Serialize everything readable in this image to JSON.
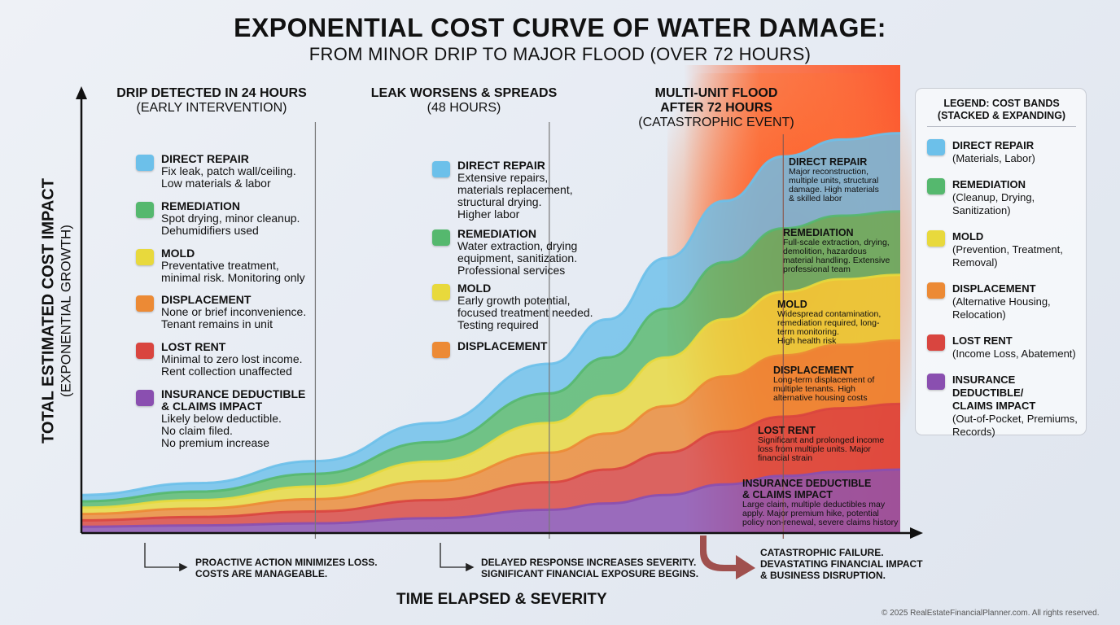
{
  "title": "EXPONENTIAL COST CURVE OF WATER DAMAGE:",
  "subtitle": "FROM MINOR DRIP TO MAJOR FLOOD (OVER 72 HOURS)",
  "copyright": "© 2025 RealEstateFinancialPlanner.com. All rights reserved.",
  "colors": {
    "direct_repair": "#6cc0ea",
    "remediation": "#55b86e",
    "mold": "#e8d93c",
    "displacement": "#ec8a35",
    "lost_rent": "#d9453f",
    "insurance": "#8a4fb0"
  },
  "chart_data": {
    "type": "area",
    "stacked": true,
    "title": "EXPONENTIAL COST CURVE OF WATER DAMAGE:",
    "subtitle": "FROM MINOR DRIP TO MAJOR FLOOD (OVER 72 HOURS)",
    "xlabel": "TIME ELAPSED & SEVERITY",
    "ylabel": "TOTAL ESTIMATED COST IMPACT",
    "ylabel_sub": "(EXPONENTIAL GROWTH)",
    "xlim": [
      0,
      84
    ],
    "ylim": [
      0,
      100
    ],
    "x": [
      0,
      12,
      24,
      36,
      48,
      54,
      60,
      66,
      72,
      78,
      84
    ],
    "series": [
      {
        "name": "INSURANCE DEDUCTIBLE/ CLAIMS IMPACT",
        "color": "#8a4fb0",
        "values": [
          1.5,
          1.8,
          2.3,
          3.5,
          5.5,
          7,
          9,
          11.5,
          13.5,
          14.5,
          15
        ]
      },
      {
        "name": "LOST RENT",
        "color": "#d9453f",
        "values": [
          1.5,
          2,
          2.8,
          4.3,
          6.5,
          8,
          10,
          12.5,
          14,
          15,
          15.5
        ]
      },
      {
        "name": "DISPLACEMENT",
        "color": "#ec8a35",
        "values": [
          1.5,
          2,
          2.9,
          4.5,
          7,
          8.5,
          11,
          13,
          14.5,
          15,
          15
        ]
      },
      {
        "name": "MOLD",
        "color": "#e8d93c",
        "values": [
          1.5,
          2,
          3,
          4.6,
          7,
          9,
          11.5,
          13.5,
          15,
          15.5,
          15.5
        ]
      },
      {
        "name": "REMEDIATION",
        "color": "#55b86e",
        "values": [
          1.5,
          2,
          3,
          4.6,
          7,
          9,
          11.5,
          13.5,
          15,
          15,
          15
        ]
      },
      {
        "name": "DIRECT REPAIR",
        "color": "#6cc0ea",
        "values": [
          1.5,
          2,
          3,
          4.5,
          7,
          9,
          12,
          14.5,
          17,
          18,
          18.5
        ]
      }
    ],
    "stage_markers": [
      24,
      48,
      72
    ]
  },
  "stages": [
    {
      "heading": "DRIP DETECTED IN 24 HOURS",
      "subheading": "(EARLY INTERVENTION)",
      "items": [
        {
          "title": "DIRECT REPAIR",
          "desc": [
            "Fix leak, patch wall/ceiling.",
            "Low materials & labor"
          ]
        },
        {
          "title": "REMEDIATION",
          "desc": [
            "Spot drying, minor cleanup.",
            "Dehumidifiers used"
          ]
        },
        {
          "title": "MOLD",
          "desc": [
            "Preventative treatment,",
            "minimal risk. Monitoring only"
          ]
        },
        {
          "title": "DISPLACEMENT",
          "desc": [
            "None or brief inconvenience.",
            "Tenant remains in unit"
          ]
        },
        {
          "title": "LOST RENT",
          "desc": [
            "Minimal to zero lost income.",
            "Rent collection unaffected"
          ]
        },
        {
          "title": "INSURANCE DEDUCTIBLE",
          "title2": "& CLAIMS IMPACT",
          "desc": [
            "Likely below deductible.",
            "No claim filed.",
            "No premium increase"
          ]
        }
      ],
      "note": [
        "PROACTIVE ACTION MINIMIZES LOSS.",
        "COSTS ARE MANAGEABLE."
      ]
    },
    {
      "heading": "LEAK WORSENS & SPREADS",
      "subheading": "(48 HOURS)",
      "items": [
        {
          "title": "DIRECT REPAIR",
          "desc": [
            "Extensive repairs,",
            "materials replacement,",
            "structural drying.",
            "Higher labor"
          ]
        },
        {
          "title": "REMEDIATION",
          "desc": [
            "Water extraction, drying",
            "equipment, sanitization.",
            "Professional services"
          ]
        },
        {
          "title": "MOLD",
          "desc": [
            "Early growth potential,",
            "focused treatment needed.",
            "Testing required"
          ]
        },
        {
          "title": "DISPLACEMENT",
          "desc": []
        }
      ],
      "note": [
        "DELAYED RESPONSE INCREASES SEVERITY.",
        "SIGNIFICANT FINANCIAL EXPOSURE BEGINS."
      ]
    },
    {
      "heading": "MULTI-UNIT FLOOD",
      "heading2": "AFTER 72 HOURS",
      "subheading": "(CATASTROPHIC EVENT)",
      "bands": [
        {
          "title": "DIRECT REPAIR",
          "desc": [
            "Major reconstruction,",
            "multiple units, structural",
            "damage. High materials",
            "& skilled labor"
          ]
        },
        {
          "title": "REMEDIATION",
          "desc": [
            "Full-scale extraction, drying,",
            "demolition, hazardous",
            "material handling. Extensive",
            "professional team"
          ]
        },
        {
          "title": "MOLD",
          "desc": [
            "Widespread contamination,",
            "remediation required, long-",
            "term monitoring.",
            "High health risk"
          ]
        },
        {
          "title": "DISPLACEMENT",
          "desc": [
            "Long-term displacement of",
            "multiple tenants. High",
            "alternative housing costs"
          ]
        },
        {
          "title": "LOST RENT",
          "desc": [
            "Significant and prolonged income",
            "loss from multiple units. Major",
            "financial strain"
          ]
        },
        {
          "title": "INSURANCE DEDUCTIBLE",
          "title2": "& CLAIMS IMPACT",
          "desc": [
            "Large claim, multiple deductibles may",
            "apply. Major premium hike, potential",
            "policy non-renewal, severe claims history"
          ]
        }
      ],
      "note": [
        "CATASTROPHIC FAILURE.",
        "DEVASTATING FINANCIAL IMPACT",
        "& BUSINESS DISRUPTION."
      ]
    }
  ],
  "legend": {
    "title": [
      "LEGEND: COST BANDS",
      "(STACKED & EXPANDING)"
    ],
    "items": [
      {
        "title": "DIRECT REPAIR",
        "desc": [
          "(Materials, Labor)"
        ]
      },
      {
        "title": "REMEDIATION",
        "desc": [
          "(Cleanup, Drying,",
          "Sanitization)"
        ]
      },
      {
        "title": "MOLD",
        "desc": [
          "(Prevention, Treatment,",
          "Removal)"
        ]
      },
      {
        "title": "DISPLACEMENT",
        "desc": [
          "(Alternative Housing,",
          "Relocation)"
        ]
      },
      {
        "title": "LOST RENT",
        "desc": [
          "(Income Loss, Abatement)"
        ]
      },
      {
        "title": "INSURANCE DEDUCTIBLE/",
        "title2": "CLAIMS IMPACT",
        "desc": [
          "(Out-of-Pocket, Premiums,",
          "Records)"
        ]
      }
    ]
  }
}
